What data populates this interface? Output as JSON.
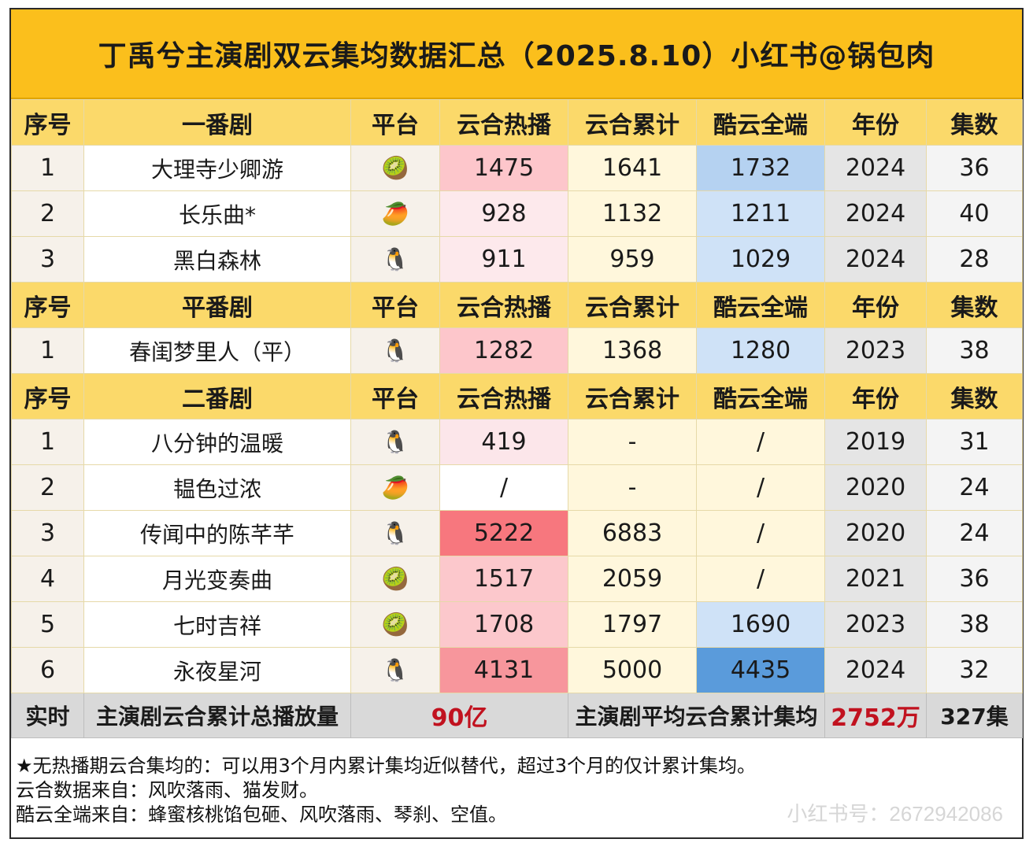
{
  "title": "丁禹兮主演剧双云集均数据汇总（2025.8.10）小红书@锅包肉",
  "sections": [
    {
      "header": [
        "序号",
        "一番剧",
        "平台",
        "云合热播",
        "云合累计",
        "酷云全端",
        "年份",
        "集数"
      ],
      "rows": [
        {
          "idx": "1",
          "name": "大理寺少卿游",
          "platform_icon": "kiwi-icon",
          "platform": "🥝",
          "hot": "1475",
          "cum": "1641",
          "kuyun": "1732",
          "year": "2024",
          "eps": "36",
          "hot_lv": "hot1",
          "kuy_lv": "kuy-top"
        },
        {
          "idx": "2",
          "name": "长乐曲*",
          "platform_icon": "mango-icon",
          "platform": "🥭",
          "hot": "928",
          "cum": "1132",
          "kuyun": "1211",
          "year": "2024",
          "eps": "40",
          "hot_lv": "hot2",
          "kuy_lv": ""
        },
        {
          "idx": "3",
          "name": "黑白森林",
          "platform_icon": "penguin-icon",
          "platform": "🐧",
          "hot": "911",
          "cum": "959",
          "kuyun": "1029",
          "year": "2024",
          "eps": "28",
          "hot_lv": "hot2",
          "kuy_lv": ""
        }
      ]
    },
    {
      "header": [
        "序号",
        "平番剧",
        "平台",
        "云合热播",
        "云合累计",
        "酷云全端",
        "年份",
        "集数"
      ],
      "rows": [
        {
          "idx": "1",
          "name": "春闺梦里人（平）",
          "platform_icon": "penguin-icon",
          "platform": "🐧",
          "hot": "1282",
          "cum": "1368",
          "kuyun": "1280",
          "year": "2023",
          "eps": "38",
          "hot_lv": "hot1",
          "kuy_lv": ""
        }
      ]
    },
    {
      "header": [
        "序号",
        "二番剧",
        "平台",
        "云合热播",
        "云合累计",
        "酷云全端",
        "年份",
        "集数"
      ],
      "rows": [
        {
          "idx": "1",
          "name": "八分钟的温暖",
          "platform_icon": "penguin-icon",
          "platform": "🐧",
          "hot": "419",
          "cum": "-",
          "kuyun": "/",
          "year": "2019",
          "eps": "31",
          "hot_lv": "hot3",
          "kuy_lv": "kuy-none"
        },
        {
          "idx": "2",
          "name": "韫色过浓",
          "platform_icon": "mango-icon",
          "platform": "🥭",
          "hot": "/",
          "cum": "-",
          "kuyun": "/",
          "year": "2020",
          "eps": "24",
          "hot_lv": "lv-none",
          "kuy_lv": "kuy-none"
        },
        {
          "idx": "3",
          "name": "传闻中的陈芊芊",
          "platform_icon": "penguin-icon",
          "platform": "🐧",
          "hot": "5222",
          "cum": "6883",
          "kuyun": "/",
          "year": "2020",
          "eps": "24",
          "hot_lv": "hot-max",
          "kuy_lv": "kuy-none"
        },
        {
          "idx": "4",
          "name": "月光变奏曲",
          "platform_icon": "kiwi-icon",
          "platform": "🥝",
          "hot": "1517",
          "cum": "2059",
          "kuyun": "/",
          "year": "2021",
          "eps": "36",
          "hot_lv": "hot-mid",
          "kuy_lv": "kuy-none"
        },
        {
          "idx": "5",
          "name": "七时吉祥",
          "platform_icon": "kiwi-icon",
          "platform": "🥝",
          "hot": "1708",
          "cum": "1797",
          "kuyun": "1690",
          "year": "2023",
          "eps": "38",
          "hot_lv": "hot-mid",
          "kuy_lv": ""
        },
        {
          "idx": "6",
          "name": "永夜星河",
          "platform_icon": "penguin-icon",
          "platform": "🐧",
          "hot": "4131",
          "cum": "5000",
          "kuyun": "4435",
          "year": "2024",
          "eps": "32",
          "hot_lv": "hot-high",
          "kuy_lv": "kuy-max"
        }
      ]
    }
  ],
  "total": {
    "label": "实时",
    "total_label": "主演剧云合累计总播放量",
    "total_value": "90亿",
    "avg_label": "主演剧平均云合累计集均",
    "avg_value": "2752万",
    "episodes": "327集"
  },
  "notes": [
    "★无热播期云合集均的：可以用3个月内累计集均近似替代，超过3个月的仅计累计集均。",
    "云合数据来自：风吹落雨、猫发财。",
    "酷云全端来自：蜂蜜核桃馅包砸、风吹落雨、琴刹、空值。"
  ],
  "watermark": "小红书号：2672942086"
}
